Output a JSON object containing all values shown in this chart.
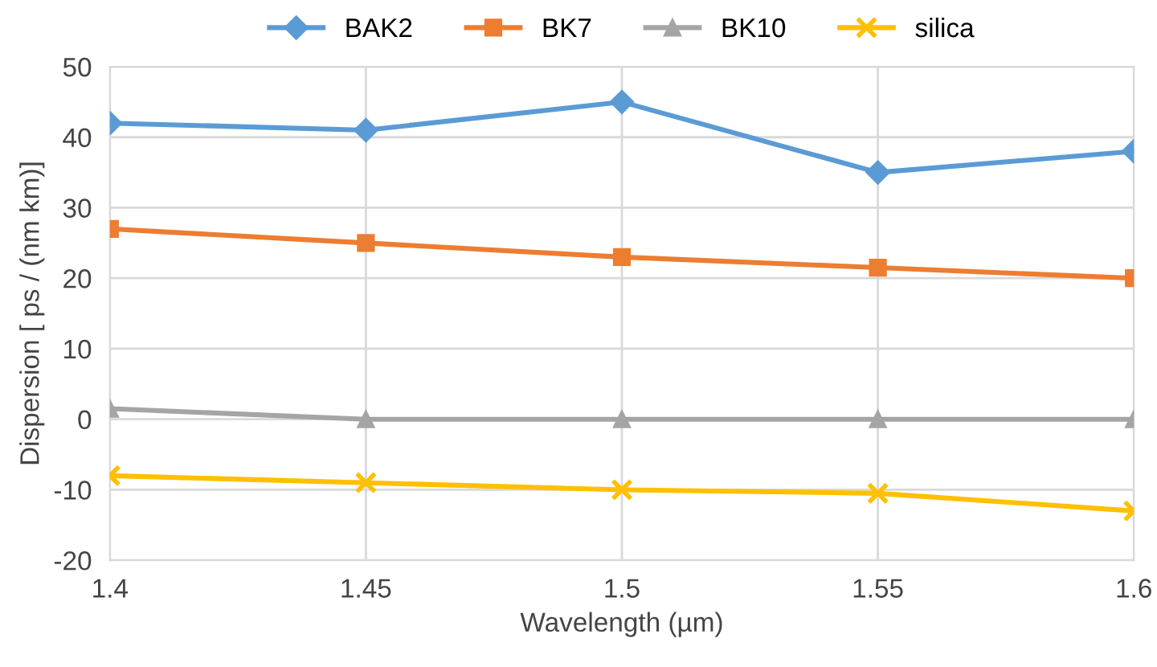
{
  "chart_data": {
    "type": "line",
    "xlabel": "Wavelength (µm)",
    "ylabel": "Dispersion [ ps / (nm km)]",
    "x": [
      1.4,
      1.45,
      1.5,
      1.55,
      1.6
    ],
    "series": [
      {
        "name": "BAK2",
        "color": "#5b9bd5",
        "marker": "diamond",
        "values": [
          42,
          41,
          45,
          35,
          38
        ]
      },
      {
        "name": "BK7",
        "color": "#ed7d31",
        "marker": "square",
        "values": [
          27,
          25,
          23,
          21.5,
          20
        ]
      },
      {
        "name": "BK10",
        "color": "#a5a5a5",
        "marker": "triangle",
        "values": [
          1.5,
          0,
          0,
          0,
          0
        ]
      },
      {
        "name": "silica",
        "color": "#ffc000",
        "marker": "cross",
        "values": [
          -8,
          -9,
          -10,
          -10.5,
          -13
        ]
      }
    ],
    "xlim": [
      1.4,
      1.6
    ],
    "xticks": [
      1.4,
      1.45,
      1.5,
      1.55,
      1.6
    ],
    "ylim": [
      -20,
      50
    ],
    "yticks": [
      -20,
      -10,
      0,
      10,
      20,
      30,
      40,
      50
    ],
    "grid": true,
    "legend": "top",
    "line_style": "solid"
  }
}
